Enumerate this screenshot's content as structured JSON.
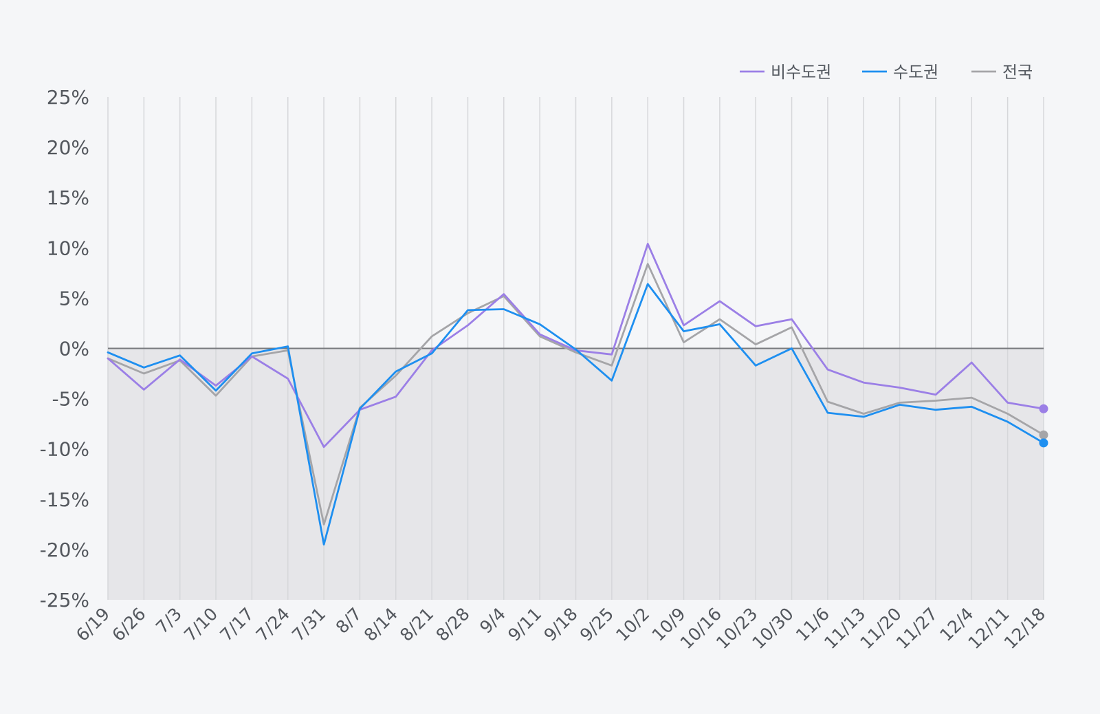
{
  "chart_data": {
    "type": "line",
    "categories": [
      "6/19",
      "6/26",
      "7/3",
      "7/10",
      "7/17",
      "7/24",
      "7/31",
      "8/7",
      "8/14",
      "8/21",
      "8/28",
      "9/4",
      "9/11",
      "9/18",
      "9/25",
      "10/2",
      "10/9",
      "10/16",
      "10/23",
      "10/30",
      "11/6",
      "11/13",
      "11/20",
      "11/27",
      "12/4",
      "12/11",
      "12/18"
    ],
    "ylim": [
      -25,
      25
    ],
    "yticks": [
      25,
      20,
      15,
      10,
      5,
      0,
      -5,
      -10,
      -15,
      -20,
      -25
    ],
    "ytick_suffix": "%",
    "grid": {
      "vertical": true,
      "horizontal": false
    },
    "negative_region_shaded": true,
    "legend_position": "top-right",
    "series": [
      {
        "name": "비수도권",
        "color": "#9b7fe6",
        "values": [
          -1.0,
          -4.1,
          -1.1,
          -3.7,
          -0.8,
          -3.0,
          -9.8,
          -6.1,
          -4.8,
          -0.2,
          2.3,
          5.4,
          1.4,
          -0.2,
          -0.6,
          10.4,
          2.3,
          4.7,
          2.2,
          2.9,
          -2.1,
          -3.4,
          -3.9,
          -4.6,
          -1.4,
          -5.4,
          -6.0
        ]
      },
      {
        "name": "수도권",
        "color": "#1e8ff0",
        "values": [
          -0.4,
          -1.9,
          -0.7,
          -4.2,
          -0.5,
          0.2,
          -19.5,
          -6.0,
          -2.3,
          -0.5,
          3.8,
          3.9,
          2.4,
          -0.1,
          -3.2,
          6.4,
          1.7,
          2.4,
          -1.7,
          0.0,
          -6.4,
          -6.8,
          -5.6,
          -6.1,
          -5.8,
          -7.3,
          -9.4
        ]
      },
      {
        "name": "전국",
        "color": "#a5a5a8",
        "values": [
          -1.0,
          -2.5,
          -1.2,
          -4.7,
          -0.8,
          -0.2,
          -17.5,
          -5.9,
          -2.7,
          1.2,
          3.5,
          5.2,
          1.2,
          -0.4,
          -1.7,
          8.4,
          0.6,
          2.9,
          0.4,
          2.1,
          -5.3,
          -6.5,
          -5.4,
          -5.2,
          -4.9,
          -6.5,
          -8.6
        ]
      }
    ]
  }
}
